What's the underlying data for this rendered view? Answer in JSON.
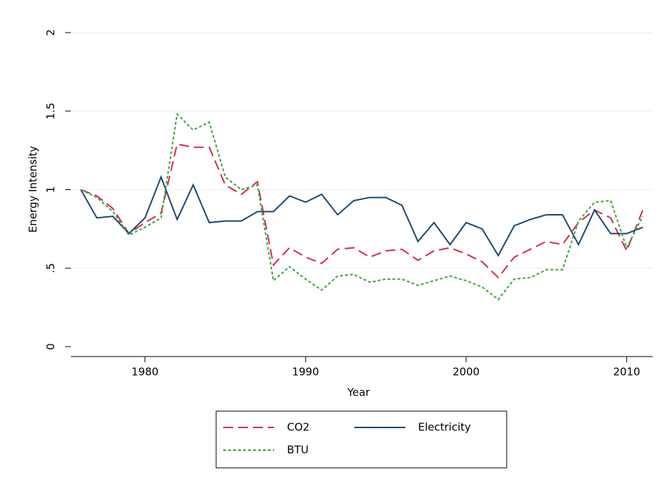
{
  "chart_data": {
    "type": "line",
    "x_label": "Year",
    "y_label": "Energy Intensity",
    "x": [
      1976,
      1977,
      1978,
      1979,
      1980,
      1981,
      1982,
      1983,
      1984,
      1985,
      1986,
      1987,
      1988,
      1989,
      1990,
      1991,
      1992,
      1993,
      1994,
      1995,
      1996,
      1997,
      1998,
      1999,
      2000,
      2001,
      2002,
      2003,
      2004,
      2005,
      2006,
      2007,
      2008,
      2009,
      2010,
      2011
    ],
    "series": [
      {
        "name": "CO2",
        "color": "#d02a55",
        "linestyle": "dashed",
        "values": [
          1.0,
          0.96,
          0.88,
          0.72,
          0.79,
          0.85,
          1.29,
          1.27,
          1.27,
          1.03,
          0.97,
          1.05,
          0.52,
          0.63,
          0.57,
          0.53,
          0.62,
          0.63,
          0.57,
          0.61,
          0.62,
          0.55,
          0.61,
          0.63,
          0.59,
          0.54,
          0.44,
          0.57,
          0.62,
          0.67,
          0.65,
          0.79,
          0.87,
          0.82,
          0.61,
          0.87
        ]
      },
      {
        "name": "Electricity",
        "color": "#1a476f",
        "linestyle": "solid",
        "values": [
          1.0,
          0.82,
          0.83,
          0.72,
          0.82,
          1.08,
          0.81,
          1.03,
          0.79,
          0.8,
          0.8,
          0.86,
          0.86,
          0.96,
          0.92,
          0.97,
          0.84,
          0.93,
          0.95,
          0.95,
          0.9,
          0.67,
          0.79,
          0.65,
          0.79,
          0.75,
          0.58,
          0.77,
          0.81,
          0.84,
          0.84,
          0.65,
          0.87,
          0.72,
          0.72,
          0.76
        ]
      },
      {
        "name": "BTU",
        "color": "#3aa53a",
        "linestyle": "dotted",
        "values": [
          1.0,
          0.95,
          0.86,
          0.71,
          0.76,
          0.82,
          1.48,
          1.38,
          1.43,
          1.08,
          1.0,
          1.03,
          0.42,
          0.51,
          0.43,
          0.36,
          0.45,
          0.46,
          0.41,
          0.43,
          0.43,
          0.39,
          0.42,
          0.45,
          0.42,
          0.38,
          0.3,
          0.43,
          0.44,
          0.49,
          0.49,
          0.8,
          0.92,
          0.93,
          0.63,
          0.83
        ]
      }
    ],
    "xlim": [
      1976,
      2011
    ],
    "xticks": [
      1980,
      1990,
      2000,
      2010
    ],
    "ylim": [
      0,
      2
    ],
    "yticks": [
      0,
      {
        "value": 0.5,
        "label": ".5"
      },
      1,
      1.5,
      2
    ],
    "grid": true
  }
}
